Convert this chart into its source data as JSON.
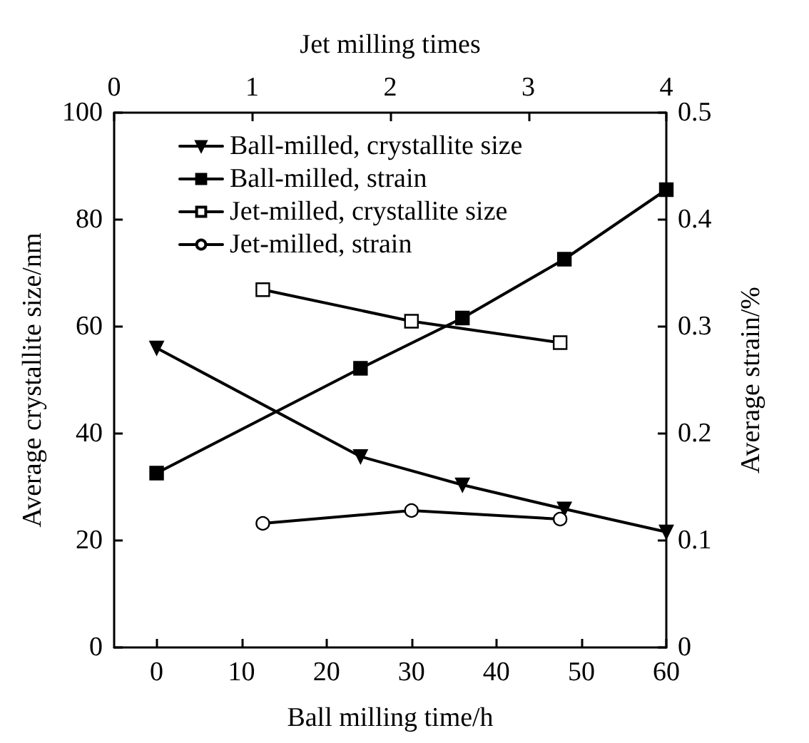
{
  "chart_data": {
    "type": "line",
    "xlabel": "Ball milling time/h",
    "x2label": "Jet milling times",
    "ylabel": "Average crystallite size/nm",
    "y2label": "Average strain/%",
    "xlim": [
      -5,
      60
    ],
    "xticks": [
      0,
      10,
      20,
      30,
      40,
      50,
      60
    ],
    "x2lim": [
      0,
      4
    ],
    "x2ticks": [
      0,
      1,
      2,
      3,
      4
    ],
    "ylim": [
      0,
      100
    ],
    "yticks": [
      0,
      20,
      40,
      60,
      80,
      100
    ],
    "y2lim": [
      0,
      0.5
    ],
    "y2ticks": [
      0,
      0.1,
      0.2,
      0.3,
      0.4,
      0.5
    ],
    "legend": "top left",
    "line_style": "solid",
    "series": [
      {
        "name": "Ball-milled, crystallite size",
        "color": "#000000",
        "marker": "triangle",
        "x": [
          0,
          24,
          36,
          48,
          60
        ],
        "values": [
          56,
          35.7,
          30.4,
          25.9,
          21.6
        ]
      },
      {
        "name": "Ball-milled, strain",
        "color": "#000000",
        "marker": "square",
        "axis": "y2",
        "x": [
          0,
          24,
          36,
          48,
          60
        ],
        "values": [
          0.163,
          0.261,
          0.308,
          0.363,
          0.428
        ]
      },
      {
        "name": "Jet-milled, crystallite size",
        "color": "#000000",
        "marker": "square",
        "x": [
          12.5,
          30,
          47.5
        ],
        "values": [
          66.9,
          61,
          57
        ]
      },
      {
        "name": "Jet-milled, strain",
        "color": "#000000",
        "marker": "circle",
        "axis": "y2",
        "x": [
          12.5,
          30,
          47.5
        ],
        "values": [
          0.116,
          0.128,
          0.12
        ]
      }
    ]
  }
}
